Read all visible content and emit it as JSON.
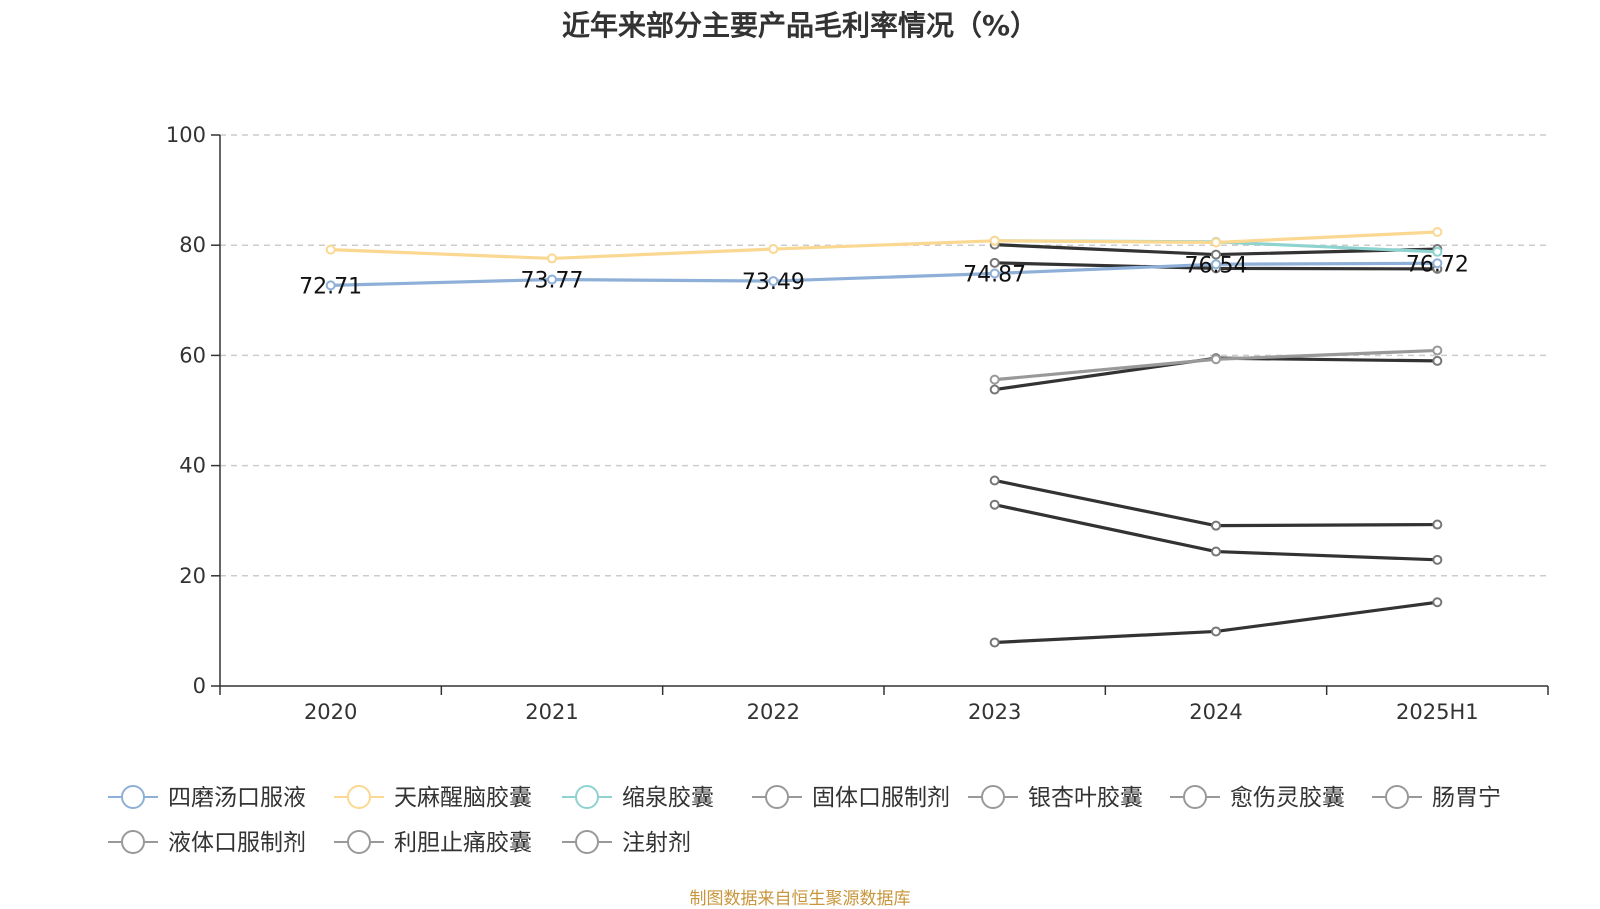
{
  "chart_data": {
    "type": "line",
    "title": "近年来部分主要产品毛利率情况（%）",
    "categories": [
      "2020",
      "2021",
      "2022",
      "2023",
      "2024",
      "2025H1"
    ],
    "ylim": [
      0,
      100
    ],
    "yticks": [
      0,
      20,
      40,
      60,
      80,
      100
    ],
    "grid": true,
    "legend_position": "bottom",
    "series": [
      {
        "name": "四磨汤口服液",
        "color": "#8eb0d8",
        "values": [
          72.71,
          73.77,
          73.49,
          74.87,
          76.54,
          76.72
        ],
        "labels": [
          "72.71",
          "73.77",
          "73.49",
          "74.87",
          "76.54",
          "76.72"
        ]
      },
      {
        "name": "天麻醒脑胶囊",
        "color": "#fbd892",
        "values": [
          79.2,
          77.6,
          79.3,
          80.8,
          80.5,
          82.4
        ]
      },
      {
        "name": "缩泉胶囊",
        "color": "#8ed3d0",
        "values": [
          null,
          null,
          null,
          80.8,
          80.6,
          78.8
        ]
      },
      {
        "name": "固体口服制剂",
        "color": "#333333",
        "values": [
          null,
          null,
          null,
          80.1,
          78.3,
          79.3
        ]
      },
      {
        "name": "银杏叶胶囊",
        "color": "#333333",
        "values": [
          null,
          null,
          null,
          76.8,
          75.8,
          75.7
        ]
      },
      {
        "name": "愈伤灵胶囊",
        "color": "#999999",
        "values": [
          null,
          null,
          null,
          55.6,
          59.3,
          60.9
        ]
      },
      {
        "name": "肠胃宁",
        "color": "#333333",
        "values": [
          null,
          null,
          null,
          53.8,
          59.5,
          59.0
        ]
      },
      {
        "name": "液体口服制剂",
        "color": "#333333",
        "values": [
          null,
          null,
          null,
          37.3,
          29.1,
          29.3
        ]
      },
      {
        "name": "利胆止痛胶囊",
        "color": "#333333",
        "values": [
          null,
          null,
          null,
          32.9,
          24.4,
          22.9
        ]
      },
      {
        "name": "注射剂",
        "color": "#333333",
        "values": [
          null,
          null,
          null,
          7.9,
          9.9,
          15.2
        ]
      }
    ],
    "legend_colors": [
      "#8eb0d8",
      "#fbd892",
      "#8ed3d0",
      "#999999",
      "#999999",
      "#999999",
      "#999999",
      "#999999",
      "#999999",
      "#999999"
    ]
  },
  "source_text": "制图数据来自恒生聚源数据库"
}
